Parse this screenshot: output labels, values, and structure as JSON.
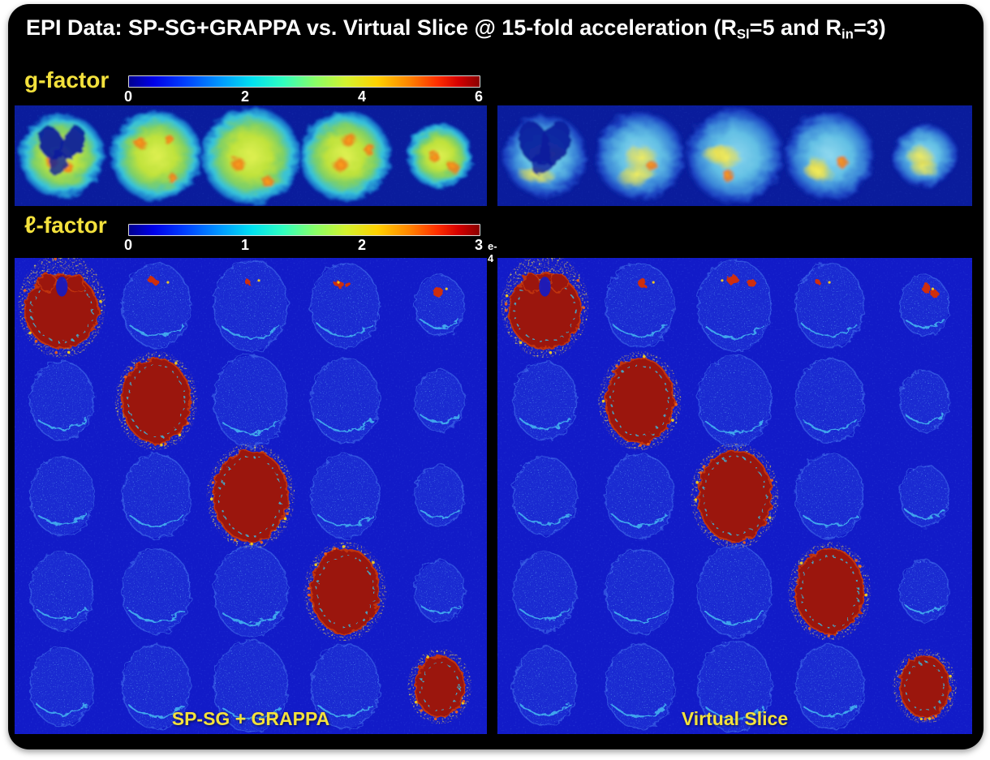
{
  "title": {
    "pre": "EPI Data: SP-SG+GRAPPA vs. Virtual Slice @ 15-fold acceleration (R",
    "sub1": "Sl",
    "mid": "=5 and R",
    "sub2": "in",
    "post": "=3)"
  },
  "gfactor": {
    "label": "g-factor",
    "colorbar": {
      "ticks": [
        "0",
        "2",
        "4",
        "6"
      ]
    }
  },
  "lfactor": {
    "symbol": "ℓ",
    "label": "-factor",
    "colorbar": {
      "ticks": [
        "0",
        "1",
        "2",
        "3"
      ],
      "exponent": "e-4"
    }
  },
  "gmaps": {
    "left": {
      "slices": 5
    },
    "right": {
      "slices": 5
    }
  },
  "lmaps": {
    "rows": 5,
    "cols": 5,
    "left": {
      "caption": "SP-SG + GRAPPA"
    },
    "right": {
      "caption": "Virtual Slice"
    }
  },
  "colors": {
    "accent_yellow": "#F3E13C",
    "gmap_bg": "#0A1C9C",
    "lmap_bg": "#121BC8",
    "diag_red": "#9B1408",
    "jet_start": "#000090",
    "jet_end": "#8a0000"
  }
}
